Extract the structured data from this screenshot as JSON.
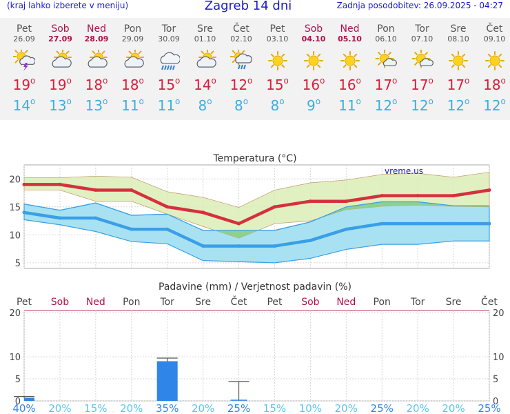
{
  "header": {
    "menu_hint": "(kraj lahko izberete v meniju)",
    "title": "Zagreb 14 dni",
    "updated": "Zadnja posodobitev: 26.09.2025 - 04:27"
  },
  "days": [
    {
      "name": "Pet",
      "date": "26.09",
      "weekend": false,
      "icon": "sun-cloud-thunder-icon",
      "tmax": "19",
      "tmin": "14"
    },
    {
      "name": "Sob",
      "date": "27.09",
      "weekend": true,
      "icon": "sun-cloud-icon",
      "tmax": "19",
      "tmin": "13"
    },
    {
      "name": "Ned",
      "date": "28.09",
      "weekend": true,
      "icon": "sun-cloud-icon",
      "tmax": "18",
      "tmin": "13"
    },
    {
      "name": "Pon",
      "date": "29.09",
      "weekend": false,
      "icon": "sun-cloud-icon",
      "tmax": "18",
      "tmin": "11"
    },
    {
      "name": "Tor",
      "date": "30.09",
      "weekend": false,
      "icon": "rain-cloud-icon",
      "tmax": "15",
      "tmin": "11"
    },
    {
      "name": "Sre",
      "date": "01.10",
      "weekend": false,
      "icon": "sun-cloud-icon",
      "tmax": "14",
      "tmin": "8"
    },
    {
      "name": "Čet",
      "date": "02.10",
      "weekend": false,
      "icon": "sun-cloud-rain-icon",
      "tmax": "12",
      "tmin": "8"
    },
    {
      "name": "Pet",
      "date": "03.10",
      "weekend": false,
      "icon": "sun-icon",
      "tmax": "15",
      "tmin": "8"
    },
    {
      "name": "Sob",
      "date": "04.10",
      "weekend": true,
      "icon": "sun-icon",
      "tmax": "16",
      "tmin": "9"
    },
    {
      "name": "Ned",
      "date": "05.10",
      "weekend": true,
      "icon": "sun-icon",
      "tmax": "16",
      "tmin": "11"
    },
    {
      "name": "Pon",
      "date": "06.10",
      "weekend": false,
      "icon": "sun-small-cloud-icon",
      "tmax": "17",
      "tmin": "12"
    },
    {
      "name": "Tor",
      "date": "07.10",
      "weekend": false,
      "icon": "sun-small-cloud-icon",
      "tmax": "17",
      "tmin": "12"
    },
    {
      "name": "Sre",
      "date": "08.10",
      "weekend": false,
      "icon": "sun-icon",
      "tmax": "17",
      "tmin": "12"
    },
    {
      "name": "Čet",
      "date": "09.10",
      "weekend": false,
      "icon": "sun-icon",
      "tmax": "18",
      "tmin": "12"
    }
  ],
  "colors": {
    "max": "#d5303e",
    "min": "#3a9fe6",
    "max_band": "#d9ecb0",
    "min_band": "#a8e2f2",
    "overlap": "#8ed08e",
    "bar": "#2f86e8",
    "weekend": "#b0104a",
    "prob": "#58c6ee"
  },
  "chart_data": [
    {
      "type": "line",
      "title": "Temperatura (°C)",
      "watermark": "vreme.us",
      "x": [
        "Pet",
        "Sob",
        "Ned",
        "Pon",
        "Tor",
        "Sre",
        "Čet",
        "Pet",
        "Sob",
        "Ned",
        "Pon",
        "Tor",
        "Sre",
        "Čet"
      ],
      "ylim": [
        4,
        22.5
      ],
      "yticks": [
        5,
        10,
        15,
        20
      ],
      "grid": true,
      "series": [
        {
          "values": [
            19,
            19,
            18,
            18,
            15,
            14,
            12,
            15,
            16,
            16,
            17,
            17,
            17,
            18
          ]
        },
        {
          "values": [
            14,
            13,
            13,
            11,
            11,
            8,
            8,
            8,
            9,
            11,
            12,
            12,
            12,
            12
          ]
        }
      ],
      "max_band": {
        "upper": [
          20.2,
          20.2,
          20.5,
          20.3,
          17.7,
          16.7,
          14.9,
          18,
          19.3,
          19.8,
          20.8,
          21,
          20.3,
          21.2
        ],
        "lower": [
          18,
          18,
          16,
          16,
          13.7,
          11.5,
          9.4,
          12,
          12.5,
          14.5,
          15.1,
          15.3,
          15.1,
          15
        ]
      },
      "min_band": {
        "upper": [
          15.5,
          14.4,
          15.7,
          13.5,
          13.7,
          10.8,
          10.8,
          10.8,
          12.3,
          15,
          15.9,
          15.9,
          15.2,
          15.2
        ],
        "lower": [
          12.7,
          11.8,
          10.6,
          8.8,
          8.4,
          5.4,
          5.2,
          5,
          5.8,
          7.4,
          8.3,
          8.3,
          8.9,
          8.9
        ]
      }
    },
    {
      "type": "bar",
      "title": "Padavine (mm) / Verjetnost padavin (%)",
      "x": [
        "Pet",
        "Sob",
        "Ned",
        "Pon",
        "Tor",
        "Sre",
        "Čet",
        "Pet",
        "Sob",
        "Ned",
        "Pon",
        "Tor",
        "Sre",
        "Čet"
      ],
      "weekend": [
        false,
        true,
        true,
        false,
        false,
        false,
        false,
        false,
        true,
        true,
        false,
        false,
        false,
        false
      ],
      "ylim": [
        0,
        20.5
      ],
      "yticks": [
        0,
        5,
        10,
        20
      ],
      "values": [
        0.7,
        0,
        0,
        0,
        9,
        0,
        0,
        0,
        0,
        0,
        0,
        0,
        0,
        0
      ],
      "error_high": [
        1,
        0,
        0,
        0,
        9.7,
        0,
        4.4,
        0,
        0,
        0,
        0,
        0,
        0,
        0
      ],
      "probability": [
        "40%",
        "20%",
        "15%",
        "20%",
        "35%",
        "20%",
        "25%",
        "15%",
        "10%",
        "20%",
        "25%",
        "20%",
        "20%",
        "25%"
      ],
      "probability_bold": [
        true,
        false,
        false,
        false,
        true,
        false,
        true,
        false,
        false,
        false,
        true,
        false,
        false,
        true
      ]
    }
  ]
}
